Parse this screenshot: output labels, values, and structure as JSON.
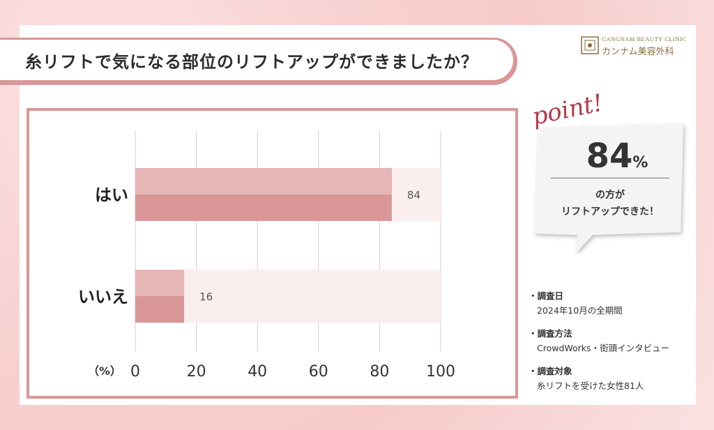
{
  "title": "糸リフトで気になる部位のリフトアップができましたか？",
  "logo": {
    "en": "GANGNAM BEAUTY CLINIC",
    "jp": "カンナム美容外科"
  },
  "point": {
    "word": "point!",
    "value": "84",
    "unit": "%",
    "line1": "の方が",
    "line2": "リフトアップできた！"
  },
  "notes": [
    {
      "head": "・調査日",
      "body": "2024年10月の全期間"
    },
    {
      "head": "・調査方法",
      "body": "CrowdWorks・街頭インタビュー"
    },
    {
      "head": "・調査対象",
      "body": "糸リフトを受けた女性81人"
    }
  ],
  "colors": {
    "bar": "#d99797",
    "bar_light": "#e7b6b6",
    "track": "#fbeeee",
    "frame": "#d99797"
  },
  "chart_data": {
    "type": "bar",
    "orientation": "horizontal",
    "categories": [
      "はい",
      "いいえ"
    ],
    "values": [
      84,
      16
    ],
    "data_labels": [
      "84",
      "16"
    ],
    "unit_label": "（%）",
    "xlim": [
      0,
      100
    ],
    "xticks": [
      "0",
      "20",
      "40",
      "60",
      "80",
      "100"
    ],
    "grid": true
  }
}
